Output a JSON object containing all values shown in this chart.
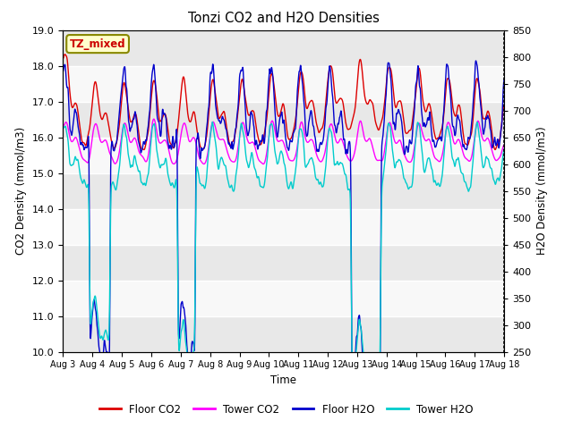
{
  "title": "Tonzi CO2 and H2O Densities",
  "xlabel": "Time",
  "ylabel_left": "CO2 Density (mmol/m3)",
  "ylabel_right": "H2O Density (mmol/m3)",
  "annotation_text": "TZ_mixed",
  "annotation_color": "#cc0000",
  "annotation_bg": "#ffffcc",
  "annotation_border": "#888800",
  "ylim_left": [
    10.0,
    19.0
  ],
  "ylim_right": [
    250,
    850
  ],
  "yticks_left": [
    10.0,
    11.0,
    12.0,
    13.0,
    14.0,
    15.0,
    16.0,
    17.0,
    18.0,
    19.0
  ],
  "yticks_right": [
    250,
    300,
    350,
    400,
    450,
    500,
    550,
    600,
    650,
    700,
    750,
    800,
    850
  ],
  "xtick_labels": [
    "Aug 3",
    "Aug 4",
    "Aug 5",
    "Aug 6",
    "Aug 7",
    "Aug 8",
    "Aug 9",
    "Aug 10",
    "Aug 11",
    "Aug 12",
    "Aug 13",
    "Aug 14",
    "Aug 15",
    "Aug 16",
    "Aug 17",
    "Aug 18"
  ],
  "legend_entries": [
    "Floor CO2",
    "Tower CO2",
    "Floor H2O",
    "Tower H2O"
  ],
  "legend_colors": [
    "#dd0000",
    "#ff00ff",
    "#0000cc",
    "#00cccc"
  ],
  "line_colors": [
    "#dd0000",
    "#ff00ff",
    "#0000cc",
    "#00cccc"
  ],
  "band_color_even": "#e8e8e8",
  "band_color_odd": "#f8f8f8",
  "background_color": "#ffffff",
  "n_points": 5400
}
